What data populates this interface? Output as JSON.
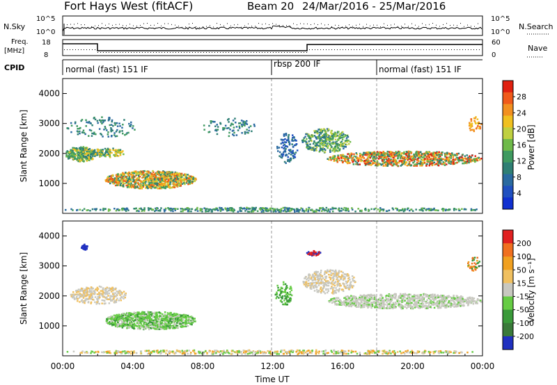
{
  "header": {
    "station": "Fort Hays West (fitACF)",
    "beam": "Beam 20",
    "dates": "24/Mar/2016 - 25/Mar/2016"
  },
  "top_panels": {
    "nsky_label": "N.Sky",
    "nsky_ticks": [
      "10^5",
      "10^0"
    ],
    "nsearch_label": "N.Search",
    "nsearch_ticks": [
      "10^5",
      "10^0"
    ],
    "freq_label_1": "Freq.",
    "freq_label_2": "[MHz]",
    "freq_ticks": [
      "18",
      "8"
    ],
    "nave_label": "Nave",
    "nave_ticks": [
      "60",
      "0"
    ],
    "cpid_label": "CPID",
    "cpid_segments": [
      {
        "label": "normal (fast) 151 IF",
        "start_hour": 0,
        "end_hour": 12
      },
      {
        "label": "rbsp 200 IF",
        "start_hour": 12,
        "end_hour": 18
      },
      {
        "label": "normal (fast) 151 IF",
        "start_hour": 18,
        "end_hour": 24
      }
    ]
  },
  "chart_data": [
    {
      "type": "heatmap",
      "title": "",
      "ylabel": "Slant Range [km]",
      "xlim_hours": [
        0,
        24
      ],
      "ylim": [
        0,
        4500
      ],
      "yticks": [
        "4000",
        "3000",
        "2000",
        "1000"
      ],
      "ytick_values": [
        4000,
        3000,
        2000,
        1000
      ],
      "colorbar": {
        "label": "Power [dB]",
        "ticks": [
          "28",
          "24",
          "20",
          "16",
          "12",
          "8",
          "4"
        ],
        "tick_values": [
          28,
          24,
          20,
          16,
          12,
          8,
          4
        ],
        "range": [
          0,
          30
        ],
        "colors": [
          "#1030d0",
          "#2050c0",
          "#2a6aa0",
          "#2f7f74",
          "#3f9a60",
          "#6fba4a",
          "#c0d040",
          "#f0c020",
          "#f29020",
          "#f05a1a",
          "#e02010"
        ]
      }
    },
    {
      "type": "heatmap",
      "title": "",
      "ylabel": "Slant Range [km]",
      "xlabel": "Time UT",
      "xlim_hours": [
        0,
        24
      ],
      "ylim": [
        0,
        4500
      ],
      "yticks": [
        "4000",
        "3000",
        "2000",
        "1000"
      ],
      "ytick_values": [
        4000,
        3000,
        2000,
        1000
      ],
      "xticks": [
        "00:00",
        "04:00",
        "08:00",
        "12:00",
        "16:00",
        "20:00",
        "00:00"
      ],
      "xtick_values": [
        0,
        4,
        8,
        12,
        16,
        20,
        24
      ],
      "colorbar": {
        "label": "Velocity [m s⁻¹]",
        "ticks": [
          "200",
          "100",
          "50",
          "15",
          "-15",
          "-50",
          "-100",
          "-200"
        ],
        "tick_values": [
          200,
          100,
          50,
          15,
          -15,
          -50,
          -100,
          -200
        ],
        "colors": [
          "#2030c0",
          "#3a7a3a",
          "#3a9a3a",
          "#66cc44",
          "#c8c8c0",
          "#f0c060",
          "#f0a020",
          "#f07020",
          "#e02020"
        ]
      }
    }
  ]
}
